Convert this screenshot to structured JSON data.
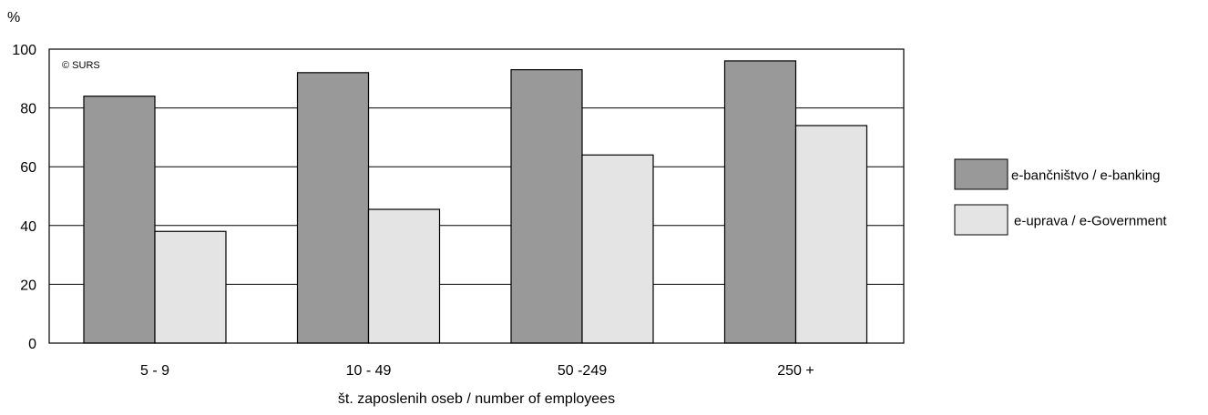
{
  "chart_data": {
    "type": "bar",
    "title": "",
    "unit_label": "%",
    "watermark": "© SURS",
    "xlabel": "št. zaposlenih oseb / number of employees",
    "ylabel": "%",
    "ylim": [
      0,
      100
    ],
    "yticks": [
      "0",
      "20",
      "40",
      "60",
      "80",
      "100"
    ],
    "grid": true,
    "legend_position": "right",
    "categories": [
      "5 - 9",
      "10 - 49",
      "50 -249",
      "250 +"
    ],
    "series": [
      {
        "name": "e-bančništvo / e-banking",
        "values": [
          84,
          92,
          93,
          96
        ],
        "color": "#999999"
      },
      {
        "name": "e-uprava / e-Government",
        "values": [
          38,
          45.5,
          64,
          74
        ],
        "color": "#e4e4e4"
      }
    ]
  }
}
